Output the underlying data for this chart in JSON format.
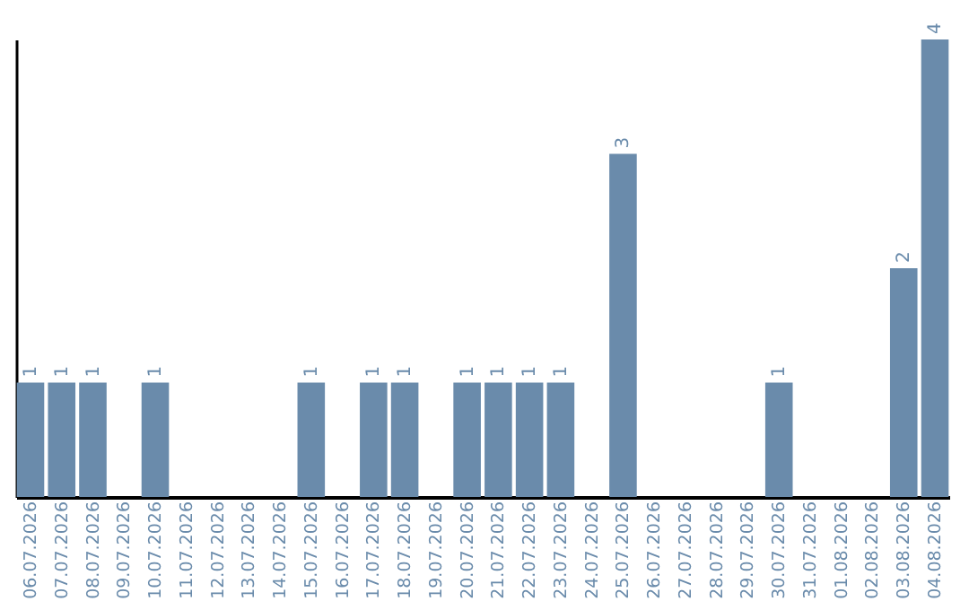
{
  "chart_data": {
    "type": "bar",
    "categories": [
      "06.07.2026",
      "07.07.2026",
      "08.07.2026",
      "09.07.2026",
      "10.07.2026",
      "11.07.2026",
      "12.07.2026",
      "13.07.2026",
      "14.07.2026",
      "15.07.2026",
      "16.07.2026",
      "17.07.2026",
      "18.07.2026",
      "19.07.2026",
      "20.07.2026",
      "21.07.2026",
      "22.07.2026",
      "23.07.2026",
      "24.07.2026",
      "25.07.2026",
      "26.07.2026",
      "27.07.2026",
      "28.07.2026",
      "29.07.2026",
      "30.07.2026",
      "31.07.2026",
      "01.08.2026",
      "02.08.2026",
      "03.08.2026",
      "04.08.2026"
    ],
    "values": [
      1,
      1,
      1,
      null,
      1,
      null,
      null,
      null,
      null,
      1,
      null,
      1,
      1,
      null,
      1,
      1,
      1,
      1,
      null,
      3,
      null,
      null,
      null,
      null,
      1,
      null,
      null,
      null,
      2,
      4
    ],
    "color": "#6a8bab",
    "data_labels": true,
    "grid": false
  }
}
